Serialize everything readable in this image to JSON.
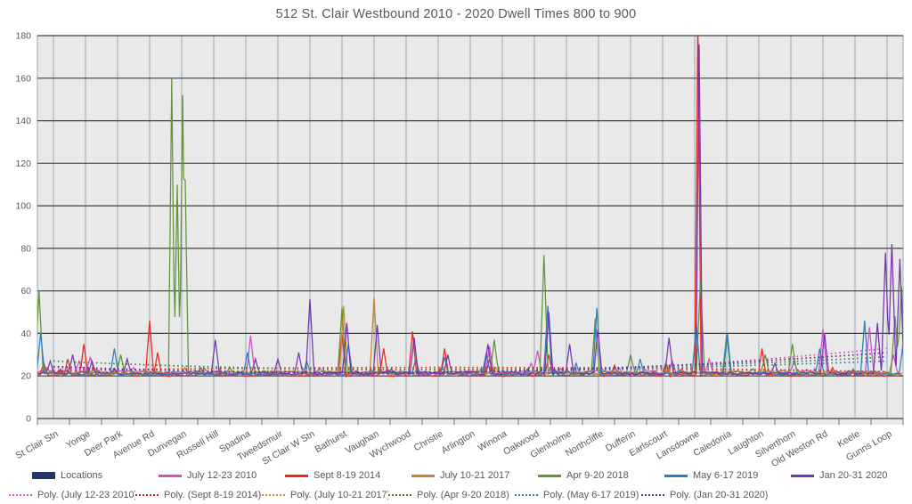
{
  "chart_data": {
    "type": "line",
    "title": "512 St. Clair Westbound 2010 - 2020 Dwell Times 800 to 900",
    "xlabel": "",
    "ylabel": "",
    "y_axis": {
      "min": 0,
      "max": 180,
      "step": 20
    },
    "grid": {
      "horizontal": true,
      "vertical": true
    },
    "legend_position": "bottom",
    "categories": [
      "St Clair Stn",
      "Yonge",
      "Deer Park",
      "Avenue Rd",
      "Dunvegan",
      "Russell Hill",
      "Spadina",
      "Tweedsmuir",
      "St Clair W Stn",
      "Bathurst",
      "Vaughan",
      "Wychwood",
      "Christie",
      "Arlington",
      "Winona",
      "Oakwood",
      "Glenholme",
      "Northcliffe",
      "Dufferin",
      "Earlscourt",
      "Lansdowne",
      "Caledonia",
      "Laughton",
      "Silverthorn",
      "Old Weston Rd",
      "Keele",
      "Gunns Loop"
    ],
    "locations_series": {
      "name": "Locations",
      "color": "#1F3864"
    },
    "series": [
      {
        "name": "July 12-23 2010",
        "color": "#D24FC6",
        "baseline": 21,
        "peaks": [
          [
            -0.2,
            24
          ],
          [
            0.8,
            27
          ],
          [
            1.15,
            29
          ],
          [
            2.5,
            24
          ],
          [
            6.15,
            39
          ],
          [
            8.3,
            24
          ],
          [
            13.6,
            34
          ],
          [
            14.9,
            26
          ],
          [
            15.1,
            32
          ],
          [
            19.3,
            27
          ],
          [
            20.45,
            28
          ],
          [
            23.1,
            27
          ],
          [
            24.0,
            42
          ],
          [
            25.45,
            43
          ],
          [
            26.2,
            30
          ]
        ]
      },
      {
        "name": "Sept 8-19 2014",
        "color": "#F0251B",
        "baseline": 19.8,
        "peaks": [
          [
            -0.3,
            26
          ],
          [
            0.45,
            28
          ],
          [
            0.95,
            35
          ],
          [
            3.0,
            46
          ],
          [
            3.25,
            31
          ],
          [
            9.0,
            40
          ],
          [
            10.3,
            33
          ],
          [
            11.2,
            41
          ],
          [
            12.2,
            33
          ],
          [
            13.6,
            28
          ],
          [
            15.45,
            30
          ],
          [
            17.5,
            25
          ],
          [
            19.1,
            26
          ],
          [
            20.1,
            188
          ],
          [
            22.1,
            33
          ],
          [
            24.3,
            24
          ]
        ]
      },
      {
        "name": "July 10-21 2017",
        "color": "#C8872E",
        "baseline": 20.3,
        "peaks": [
          [
            4.1,
            24
          ],
          [
            9.05,
            53
          ],
          [
            10.0,
            57
          ],
          [
            13.8,
            24
          ],
          [
            19.15,
            25
          ],
          [
            22.3,
            23
          ]
        ]
      },
      {
        "name": "Apr 9-20 2018",
        "color": "#61943A",
        "baseline": 21,
        "peaks": [
          [
            -0.45,
            60
          ],
          [
            2.1,
            30
          ],
          [
            3.69,
            160
          ],
          [
            3.86,
            110
          ],
          [
            4.03,
            152
          ],
          [
            4.11,
            112
          ],
          [
            5.5,
            24
          ],
          [
            9.0,
            52
          ],
          [
            13.75,
            37
          ],
          [
            15.3,
            77
          ],
          [
            16.9,
            47
          ],
          [
            18.0,
            30
          ],
          [
            20.18,
            65
          ],
          [
            21.0,
            40
          ],
          [
            22.2,
            30
          ],
          [
            23.05,
            35
          ],
          [
            26.25,
            48
          ],
          [
            26.45,
            62
          ]
        ]
      },
      {
        "name": "May 6-17 2019",
        "color": "#2B7FBF",
        "baseline": 20.2,
        "peaks": [
          [
            -0.4,
            40
          ],
          [
            1.9,
            33
          ],
          [
            4.6,
            24
          ],
          [
            6.05,
            31
          ],
          [
            7.9,
            27
          ],
          [
            9.2,
            35
          ],
          [
            11.3,
            28
          ],
          [
            12.2,
            29
          ],
          [
            13.5,
            31
          ],
          [
            15.42,
            53
          ],
          [
            16.3,
            26
          ],
          [
            16.95,
            52
          ],
          [
            18.3,
            28
          ],
          [
            20.05,
            45
          ],
          [
            21.02,
            40
          ],
          [
            23.9,
            33
          ],
          [
            25.3,
            46
          ],
          [
            26.5,
            35
          ]
        ]
      },
      {
        "name": "Jan 20-31 2020",
        "color": "#7436AE",
        "baseline": 20.6,
        "peaks": [
          [
            -0.1,
            27
          ],
          [
            0.6,
            30
          ],
          [
            1.2,
            27
          ],
          [
            2.3,
            28
          ],
          [
            5.05,
            37
          ],
          [
            6.3,
            28
          ],
          [
            7.0,
            28
          ],
          [
            7.65,
            31
          ],
          [
            8.0,
            56
          ],
          [
            9.15,
            45
          ],
          [
            10.1,
            44
          ],
          [
            11.25,
            38
          ],
          [
            12.3,
            30
          ],
          [
            13.55,
            35
          ],
          [
            15.45,
            50
          ],
          [
            16.1,
            35
          ],
          [
            16.98,
            42
          ],
          [
            19.2,
            38
          ],
          [
            20.14,
            176
          ],
          [
            22.5,
            26
          ],
          [
            24.05,
            40
          ],
          [
            25.7,
            45
          ],
          [
            25.95,
            78
          ],
          [
            26.15,
            82
          ],
          [
            26.4,
            75
          ]
        ]
      }
    ],
    "poly_series": [
      {
        "name": "Poly. (July 12-23 2010)",
        "color": "#D24FC6",
        "fit": [
          24,
          21,
          33
        ]
      },
      {
        "name": "Poly. (Sept 8-19 2014)",
        "color": "#E02020",
        "fit": [
          22.5,
          24,
          22
        ]
      },
      {
        "name": "Poly. (July 10-21 2017)",
        "color": "#C8872E",
        "fit": [
          21,
          23,
          21.5
        ]
      },
      {
        "name": "Poly. (Apr 9-20 2018)",
        "color": "#4F7A2B",
        "fit": [
          27,
          23,
          29
        ]
      },
      {
        "name": "Poly. (May 6-17 2019)",
        "color": "#2E75B6",
        "fit": [
          21,
          22,
          27
        ]
      },
      {
        "name": "Poly. (Jan 20-31 2020)",
        "color": "#5C2E91",
        "fit": [
          24.5,
          22,
          31
        ]
      }
    ],
    "colors": {
      "plot_background": "#E9E9E9",
      "h_gridline": "#3F3F3F",
      "v_gridline": "#97A6C0",
      "axis_text": "#595959",
      "title_text": "#595959"
    }
  },
  "legend": {
    "row1": [
      {
        "label": "Locations",
        "style": "bar",
        "color": "#1F3864"
      },
      {
        "label": "July 12-23 2010",
        "style": "line",
        "color": "#D24FC6"
      },
      {
        "label": "Sept 8-19 2014",
        "style": "line",
        "color": "#F0251B"
      },
      {
        "label": "July 10-21 2017",
        "style": "line",
        "color": "#C8872E"
      },
      {
        "label": "Apr 9-20 2018",
        "style": "line",
        "color": "#61943A"
      },
      {
        "label": "May 6-17 2019",
        "style": "line",
        "color": "#2B7FBF"
      },
      {
        "label": "Jan 20-31 2020",
        "style": "line",
        "color": "#7436AE"
      }
    ],
    "row2": [
      {
        "label": "Poly. (July 12-23 2010)",
        "style": "dotted",
        "color": "#D24FC6"
      },
      {
        "label": "Poly. (Sept 8-19 2014)",
        "style": "dotted",
        "color": "#E02020"
      },
      {
        "label": "Poly. (July 10-21 2017)",
        "style": "dotted",
        "color": "#C8872E"
      },
      {
        "label": "Poly. (Apr 9-20 2018)",
        "style": "dotted",
        "color": "#4F7A2B"
      },
      {
        "label": "Poly. (May 6-17 2019)",
        "style": "dotted",
        "color": "#2E75B6"
      },
      {
        "label": "Poly. (Jan 20-31 2020)",
        "style": "dotted",
        "color": "#5C2E91"
      }
    ]
  }
}
